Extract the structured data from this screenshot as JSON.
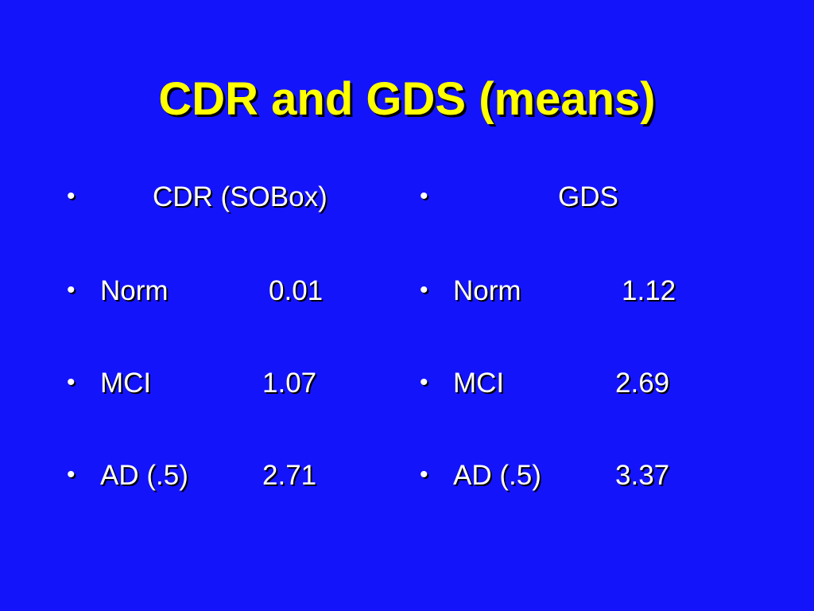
{
  "slide": {
    "title": "CDR and GDS (means)",
    "bullet_glyph": "•",
    "columns": [
      {
        "header": "CDR (SOBox)",
        "rows": [
          {
            "label": "Norm",
            "value": "0.01"
          },
          {
            "label": "MCI",
            "value": "1.07"
          },
          {
            "label": "AD (.5)",
            "value": "2.71"
          }
        ]
      },
      {
        "header": "GDS",
        "rows": [
          {
            "label": "Norm",
            "value": "1.12"
          },
          {
            "label": "MCI",
            "value": "2.69"
          },
          {
            "label": "AD (.5)",
            "value": "3.37"
          }
        ]
      }
    ],
    "colors": {
      "background": "#1414fb",
      "title": "#ffff00",
      "text": "#ffffff",
      "shadow": "#000000"
    }
  }
}
